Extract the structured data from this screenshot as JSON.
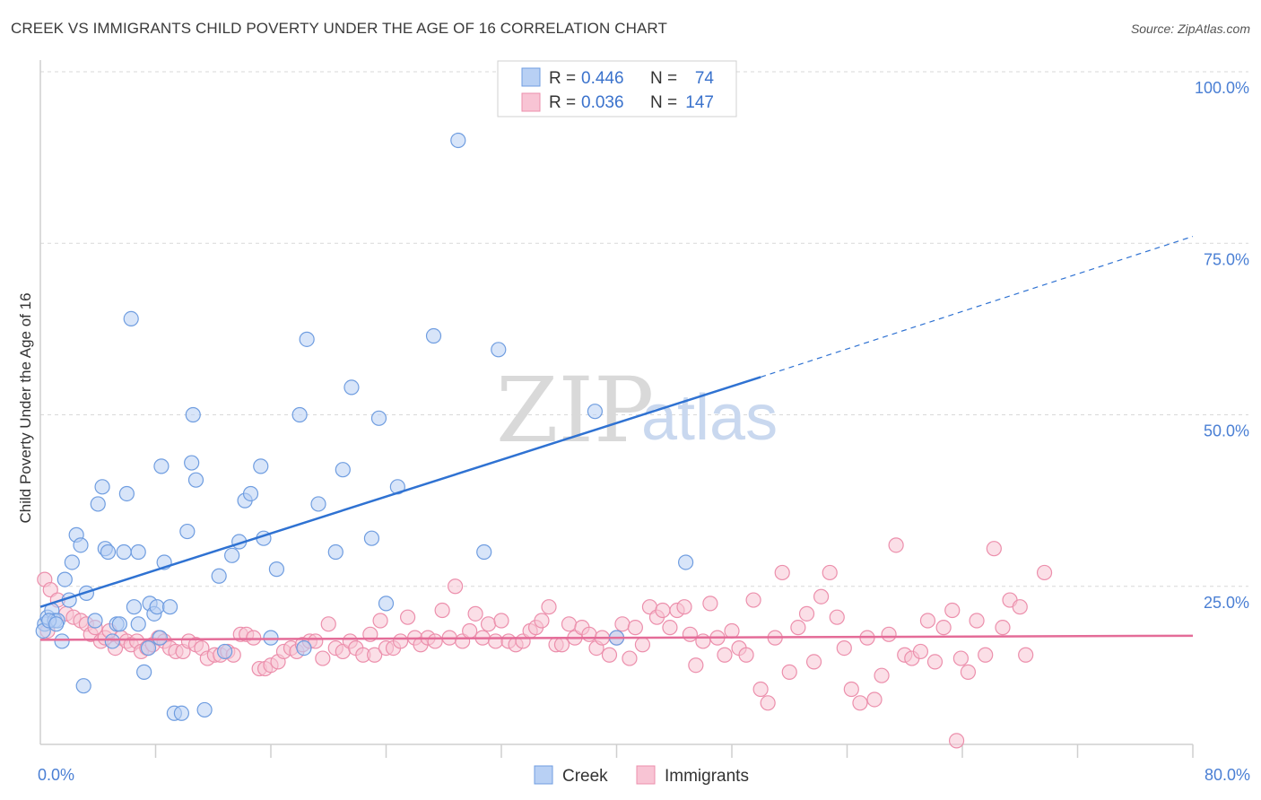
{
  "title": "CREEK VS IMMIGRANTS CHILD POVERTY UNDER THE AGE OF 16 CORRELATION CHART",
  "source": "Source: ZipAtlas.com",
  "watermark": {
    "zip": "ZIP",
    "atlas": "atlas"
  },
  "colors": {
    "creek_fill": "#b8d0f4",
    "creek_stroke": "#6f9de0",
    "creek_line": "#2f72d2",
    "imm_fill": "#f8c4d4",
    "imm_stroke": "#ec8fac",
    "imm_line": "#e46c98",
    "grid": "#d9d9d9",
    "axis_text": "#4a7fd4"
  },
  "legend": {
    "rows": [
      {
        "r_label": "R =",
        "r_value": "0.446",
        "n_label": "N =",
        "n_value": "74"
      },
      {
        "r_label": "R =",
        "r_value": "0.036",
        "n_label": "N =",
        "n_value": "147"
      }
    ]
  },
  "bottom_legend": [
    "Creek",
    "Immigrants"
  ],
  "chart_data": {
    "type": "scatter",
    "ylabel": "Child Poverty Under the Age of 16",
    "xlim": [
      0,
      80
    ],
    "ylim": [
      0,
      100
    ],
    "x_tick_labels": {
      "left": "0.0%",
      "right": "80.0%"
    },
    "y_tick_labels": [
      {
        "value": 100,
        "label": "100.0%"
      },
      {
        "value": 75,
        "label": "75.0%"
      },
      {
        "value": 50,
        "label": "50.0%"
      },
      {
        "value": 25,
        "label": "25.0%"
      }
    ],
    "grid": "horizontal dashed",
    "series": [
      {
        "name": "Creek",
        "trend": {
          "x0": 0,
          "y0": 22.0,
          "x1": 50,
          "y1": 55.5,
          "dashed_to_x": 80,
          "dashed_to_y": 76
        },
        "points": [
          [
            0.3,
            19.5
          ],
          [
            0.5,
            20.5
          ],
          [
            0.8,
            21.5
          ],
          [
            1.0,
            20
          ],
          [
            1.2,
            20
          ],
          [
            1.5,
            17
          ],
          [
            1.7,
            26
          ],
          [
            2.0,
            23
          ],
          [
            2.2,
            28.5
          ],
          [
            2.5,
            32.5
          ],
          [
            2.8,
            31
          ],
          [
            3.2,
            24
          ],
          [
            3.0,
            10.5
          ],
          [
            3.8,
            20
          ],
          [
            4.0,
            37
          ],
          [
            4.3,
            39.5
          ],
          [
            4.5,
            30.5
          ],
          [
            4.7,
            30
          ],
          [
            5.0,
            17
          ],
          [
            5.3,
            19.5
          ],
          [
            5.5,
            19.5
          ],
          [
            5.8,
            30
          ],
          [
            6.0,
            38.5
          ],
          [
            6.3,
            64
          ],
          [
            6.5,
            22
          ],
          [
            6.8,
            19.5
          ],
          [
            6.8,
            30
          ],
          [
            7.2,
            12.5
          ],
          [
            7.5,
            16
          ],
          [
            7.6,
            22.5
          ],
          [
            7.9,
            21
          ],
          [
            8.1,
            22
          ],
          [
            8.3,
            17.5
          ],
          [
            8.4,
            42.5
          ],
          [
            8.6,
            28.5
          ],
          [
            9.0,
            22
          ],
          [
            9.3,
            6.5
          ],
          [
            9.8,
            6.5
          ],
          [
            10.2,
            33
          ],
          [
            10.5,
            43
          ],
          [
            10.6,
            50
          ],
          [
            10.8,
            40.5
          ],
          [
            11.4,
            7
          ],
          [
            12.4,
            26.5
          ],
          [
            12.8,
            15.5
          ],
          [
            13.3,
            29.5
          ],
          [
            13.8,
            31.5
          ],
          [
            14.2,
            37.5
          ],
          [
            14.6,
            38.5
          ],
          [
            15.3,
            42.5
          ],
          [
            15.5,
            32
          ],
          [
            16.0,
            17.5
          ],
          [
            16.4,
            27.5
          ],
          [
            18.0,
            50
          ],
          [
            18.3,
            16
          ],
          [
            18.5,
            61
          ],
          [
            19.3,
            37
          ],
          [
            20.5,
            30
          ],
          [
            21.0,
            42
          ],
          [
            21.6,
            54
          ],
          [
            23.0,
            32
          ],
          [
            23.5,
            49.5
          ],
          [
            24.0,
            22.5
          ],
          [
            24.8,
            39.5
          ],
          [
            27.3,
            61.5
          ],
          [
            29.0,
            90
          ],
          [
            30.8,
            30
          ],
          [
            31.8,
            59.5
          ],
          [
            38.5,
            50.5
          ],
          [
            40.0,
            17.5
          ],
          [
            44.8,
            28.5
          ],
          [
            0.2,
            18.5
          ],
          [
            0.6,
            20
          ],
          [
            1.1,
            19.5
          ]
        ]
      },
      {
        "name": "Immigrants",
        "trend": {
          "x0": 0,
          "y0": 17.2,
          "x1": 80,
          "y1": 17.8
        },
        "points": [
          [
            0.3,
            26
          ],
          [
            0.5,
            18.5
          ],
          [
            0.7,
            24.5
          ],
          [
            1.2,
            23
          ],
          [
            1.8,
            21
          ],
          [
            2.3,
            20.5
          ],
          [
            2.8,
            20
          ],
          [
            3.2,
            19.5
          ],
          [
            3.5,
            18
          ],
          [
            3.8,
            19
          ],
          [
            4.2,
            17
          ],
          [
            4.5,
            17.5
          ],
          [
            4.8,
            18.5
          ],
          [
            5.2,
            16
          ],
          [
            5.6,
            17.5
          ],
          [
            6.0,
            17
          ],
          [
            6.3,
            16.5
          ],
          [
            6.7,
            17
          ],
          [
            7.0,
            15.5
          ],
          [
            7.4,
            16
          ],
          [
            7.8,
            16.5
          ],
          [
            8.2,
            17.5
          ],
          [
            8.6,
            17
          ],
          [
            9.0,
            16
          ],
          [
            9.4,
            15.5
          ],
          [
            9.9,
            15.5
          ],
          [
            10.3,
            17
          ],
          [
            10.8,
            16.5
          ],
          [
            11.2,
            16
          ],
          [
            11.6,
            14.5
          ],
          [
            12.1,
            15
          ],
          [
            12.5,
            15
          ],
          [
            13.0,
            15.5
          ],
          [
            13.4,
            15
          ],
          [
            13.9,
            18
          ],
          [
            14.3,
            18
          ],
          [
            14.8,
            17.5
          ],
          [
            15.2,
            13
          ],
          [
            15.6,
            13
          ],
          [
            16.0,
            13.5
          ],
          [
            16.5,
            14
          ],
          [
            16.9,
            15.5
          ],
          [
            17.4,
            16
          ],
          [
            17.8,
            15.5
          ],
          [
            18.2,
            16.5
          ],
          [
            18.7,
            17
          ],
          [
            19.1,
            17
          ],
          [
            19.6,
            14.5
          ],
          [
            20.0,
            19.5
          ],
          [
            20.5,
            16
          ],
          [
            21.0,
            15.5
          ],
          [
            21.5,
            17
          ],
          [
            21.9,
            16
          ],
          [
            22.4,
            15
          ],
          [
            22.9,
            18
          ],
          [
            23.2,
            15
          ],
          [
            23.6,
            20
          ],
          [
            24.0,
            16
          ],
          [
            24.5,
            16
          ],
          [
            25.0,
            17
          ],
          [
            25.5,
            20.5
          ],
          [
            26.0,
            17.5
          ],
          [
            26.4,
            16.5
          ],
          [
            26.9,
            17.5
          ],
          [
            27.4,
            17
          ],
          [
            27.9,
            21.5
          ],
          [
            28.4,
            17.5
          ],
          [
            28.8,
            25
          ],
          [
            29.3,
            17
          ],
          [
            29.8,
            18.5
          ],
          [
            30.2,
            21
          ],
          [
            30.7,
            17.5
          ],
          [
            31.1,
            19.5
          ],
          [
            31.6,
            17
          ],
          [
            32.0,
            20
          ],
          [
            32.5,
            17
          ],
          [
            33.0,
            16.5
          ],
          [
            33.5,
            17
          ],
          [
            34.0,
            18.5
          ],
          [
            34.4,
            19
          ],
          [
            34.8,
            20
          ],
          [
            35.3,
            22
          ],
          [
            35.8,
            16.5
          ],
          [
            36.2,
            16.5
          ],
          [
            36.7,
            19.5
          ],
          [
            37.1,
            17.5
          ],
          [
            37.6,
            19
          ],
          [
            38.1,
            18
          ],
          [
            38.6,
            16
          ],
          [
            39.0,
            17.5
          ],
          [
            39.5,
            15
          ],
          [
            40.0,
            17.5
          ],
          [
            40.4,
            19.5
          ],
          [
            40.9,
            14.5
          ],
          [
            41.3,
            19
          ],
          [
            41.8,
            16.5
          ],
          [
            42.3,
            22
          ],
          [
            42.8,
            20.5
          ],
          [
            43.2,
            21.5
          ],
          [
            43.7,
            19
          ],
          [
            44.2,
            21.5
          ],
          [
            44.7,
            22
          ],
          [
            45.1,
            18
          ],
          [
            45.5,
            13.5
          ],
          [
            46.0,
            17
          ],
          [
            46.5,
            22.5
          ],
          [
            47.0,
            17.5
          ],
          [
            47.5,
            15
          ],
          [
            48.0,
            18.5
          ],
          [
            48.5,
            16
          ],
          [
            49.0,
            15
          ],
          [
            49.5,
            23
          ],
          [
            50.0,
            10
          ],
          [
            50.5,
            8
          ],
          [
            51.0,
            17.5
          ],
          [
            51.5,
            27
          ],
          [
            52.0,
            12.5
          ],
          [
            52.6,
            19
          ],
          [
            53.2,
            21
          ],
          [
            53.7,
            14
          ],
          [
            54.2,
            23.5
          ],
          [
            54.8,
            27
          ],
          [
            55.3,
            20.5
          ],
          [
            55.8,
            16
          ],
          [
            56.3,
            10
          ],
          [
            56.9,
            8
          ],
          [
            57.4,
            17.5
          ],
          [
            57.9,
            8.5
          ],
          [
            58.4,
            12
          ],
          [
            58.9,
            18
          ],
          [
            59.4,
            31
          ],
          [
            60.0,
            15
          ],
          [
            60.5,
            14.5
          ],
          [
            61.1,
            15.5
          ],
          [
            61.6,
            20
          ],
          [
            62.1,
            14
          ],
          [
            62.7,
            19
          ],
          [
            63.3,
            21.5
          ],
          [
            63.9,
            14.5
          ],
          [
            64.4,
            12.5
          ],
          [
            65.0,
            20
          ],
          [
            65.6,
            15
          ],
          [
            66.2,
            30.5
          ],
          [
            66.8,
            19
          ],
          [
            67.3,
            23
          ],
          [
            68.0,
            22
          ],
          [
            68.4,
            15
          ],
          [
            69.7,
            27
          ],
          [
            63.6,
            2.5
          ]
        ]
      }
    ]
  }
}
